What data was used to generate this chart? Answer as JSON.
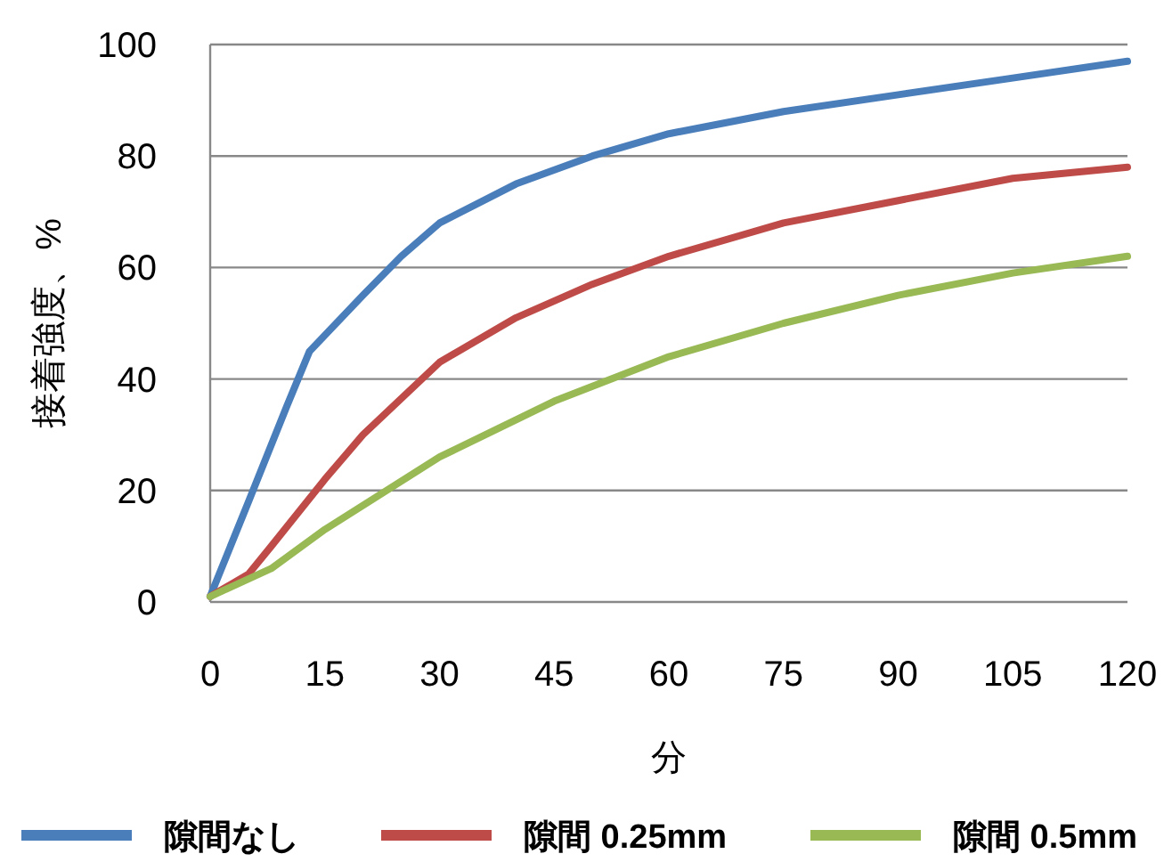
{
  "chart_data": {
    "type": "line",
    "xlabel": "分",
    "ylabel": "接着強度、%",
    "xlim": [
      0,
      120
    ],
    "ylim": [
      0,
      100
    ],
    "xticks": [
      0,
      15,
      30,
      45,
      60,
      75,
      90,
      105,
      120
    ],
    "yticks": [
      0,
      20,
      40,
      60,
      80,
      100
    ],
    "grid": "y",
    "legend": "bottom",
    "marker": "none",
    "line_style": "solid",
    "series": [
      {
        "name": "隙間なし",
        "color": "#4a7ebb",
        "x": [
          0,
          5,
          10,
          13,
          20,
          25,
          30,
          40,
          50,
          60,
          75,
          90,
          105,
          120
        ],
        "values": [
          1,
          18,
          35,
          45,
          55,
          62,
          68,
          75,
          80,
          84,
          88,
          91,
          94,
          97
        ]
      },
      {
        "name": "隙間 0.25mm",
        "color": "#be4b48",
        "x": [
          0,
          5,
          8,
          15,
          20,
          30,
          40,
          50,
          60,
          75,
          90,
          105,
          120
        ],
        "values": [
          1,
          5,
          10,
          22,
          30,
          43,
          51,
          57,
          62,
          68,
          72,
          76,
          78
        ]
      },
      {
        "name": "隙間 0.5mm",
        "color": "#98b954",
        "x": [
          0,
          8,
          15,
          30,
          45,
          60,
          75,
          90,
          105,
          120
        ],
        "values": [
          1,
          6,
          13,
          26,
          36,
          44,
          50,
          55,
          59,
          62
        ]
      }
    ]
  }
}
